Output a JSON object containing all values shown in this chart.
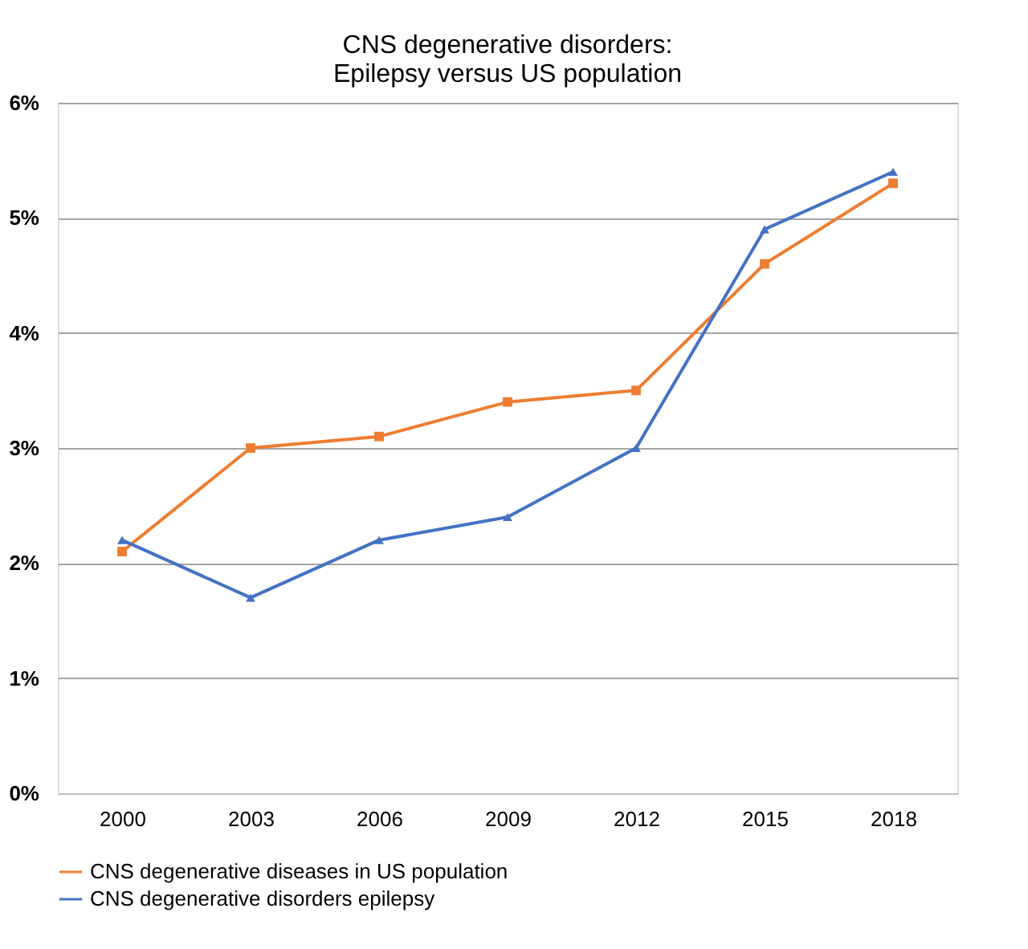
{
  "chart_data": {
    "type": "line",
    "title": "CNS degenerative disorders:\nEpilepsy versus US population",
    "categories": [
      "2000",
      "2003",
      "2006",
      "2009",
      "2012",
      "2015",
      "2018"
    ],
    "series": [
      {
        "name": "CNS degenerative diseases in US population",
        "color": "#ed7d31",
        "marker": "square",
        "values": [
          2.1,
          3.0,
          3.1,
          3.4,
          3.5,
          4.6,
          5.3
        ]
      },
      {
        "name": "CNS degenerative disorders epilepsy",
        "color": "#4472c4",
        "marker": "triangle",
        "values": [
          2.2,
          1.7,
          2.2,
          2.4,
          3.0,
          4.9,
          5.4
        ]
      }
    ],
    "ylim": [
      0,
      6
    ],
    "yticks": [
      {
        "value": 0,
        "label": "0%"
      },
      {
        "value": 1,
        "label": "1%"
      },
      {
        "value": 2,
        "label": "2%"
      },
      {
        "value": 3,
        "label": "3%"
      },
      {
        "value": 4,
        "label": "4%"
      },
      {
        "value": 5,
        "label": "5%"
      },
      {
        "value": 6,
        "label": "6%"
      }
    ],
    "grid": "y",
    "legend": "bottom",
    "line_style": "solid"
  }
}
